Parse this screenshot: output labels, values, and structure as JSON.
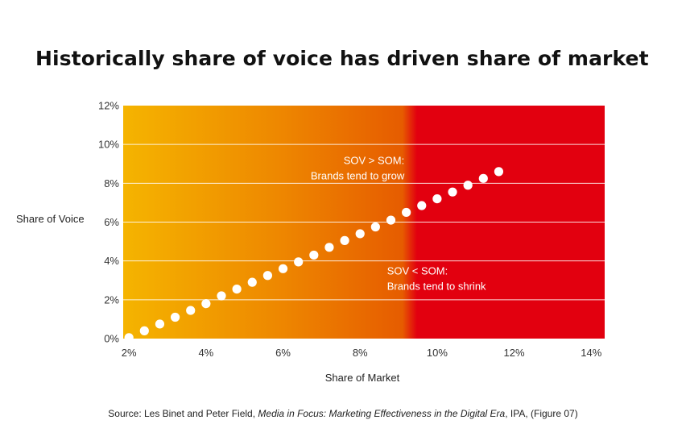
{
  "chart_data": {
    "type": "scatter",
    "title": "Historically share of voice has driven share of market",
    "xlabel": "Share of Market",
    "ylabel": "Share of Voice",
    "xlim": [
      1.85,
      14.35
    ],
    "ylim": [
      0,
      12
    ],
    "x_ticks": [
      2,
      4,
      6,
      8,
      10,
      12,
      14
    ],
    "x_tick_labels": [
      "2%",
      "4%",
      "6%",
      "8%",
      "10%",
      "12%",
      "14%"
    ],
    "y_ticks": [
      0,
      2,
      4,
      6,
      8,
      10,
      12
    ],
    "y_tick_labels": [
      "0%",
      "2%",
      "4%",
      "6%",
      "8%",
      "10%",
      "12%"
    ],
    "grid": "horizontal",
    "series": [
      {
        "color": "#ffffff",
        "x": [
          2.0,
          2.4,
          2.8,
          3.2,
          3.6,
          4.0,
          4.4,
          4.8,
          5.2,
          5.6,
          6.0,
          6.4,
          6.8,
          7.2,
          7.6,
          8.0,
          8.4,
          8.8,
          9.2,
          9.6,
          10.0,
          10.4,
          10.8,
          11.2,
          11.6
        ],
        "y": [
          0.05,
          0.4,
          0.75,
          1.1,
          1.45,
          1.8,
          2.2,
          2.55,
          2.9,
          3.25,
          3.6,
          3.95,
          4.3,
          4.7,
          5.05,
          5.4,
          5.75,
          6.1,
          6.5,
          6.85,
          7.2,
          7.55,
          7.9,
          8.25,
          8.6
        ]
      }
    ],
    "annotations": [
      {
        "lines": [
          "SOV > SOM:",
          "Brands tend to grow"
        ],
        "x": 9.15,
        "y": 9.0,
        "anchor": "end"
      },
      {
        "lines": [
          "SOV < SOM:",
          "Brands tend to shrink"
        ],
        "x": 8.7,
        "y": 3.3,
        "anchor": "start"
      }
    ],
    "background_gradient": [
      "#f5b400",
      "#ee8800",
      "#e65c00",
      "#e2000f"
    ]
  },
  "source": {
    "prefix": "Source: Les Binet and Peter Field, ",
    "title": "Media in Focus: Marketing Effectiveness in the Digital Era",
    "suffix": ", IPA, (Figure 07)"
  }
}
